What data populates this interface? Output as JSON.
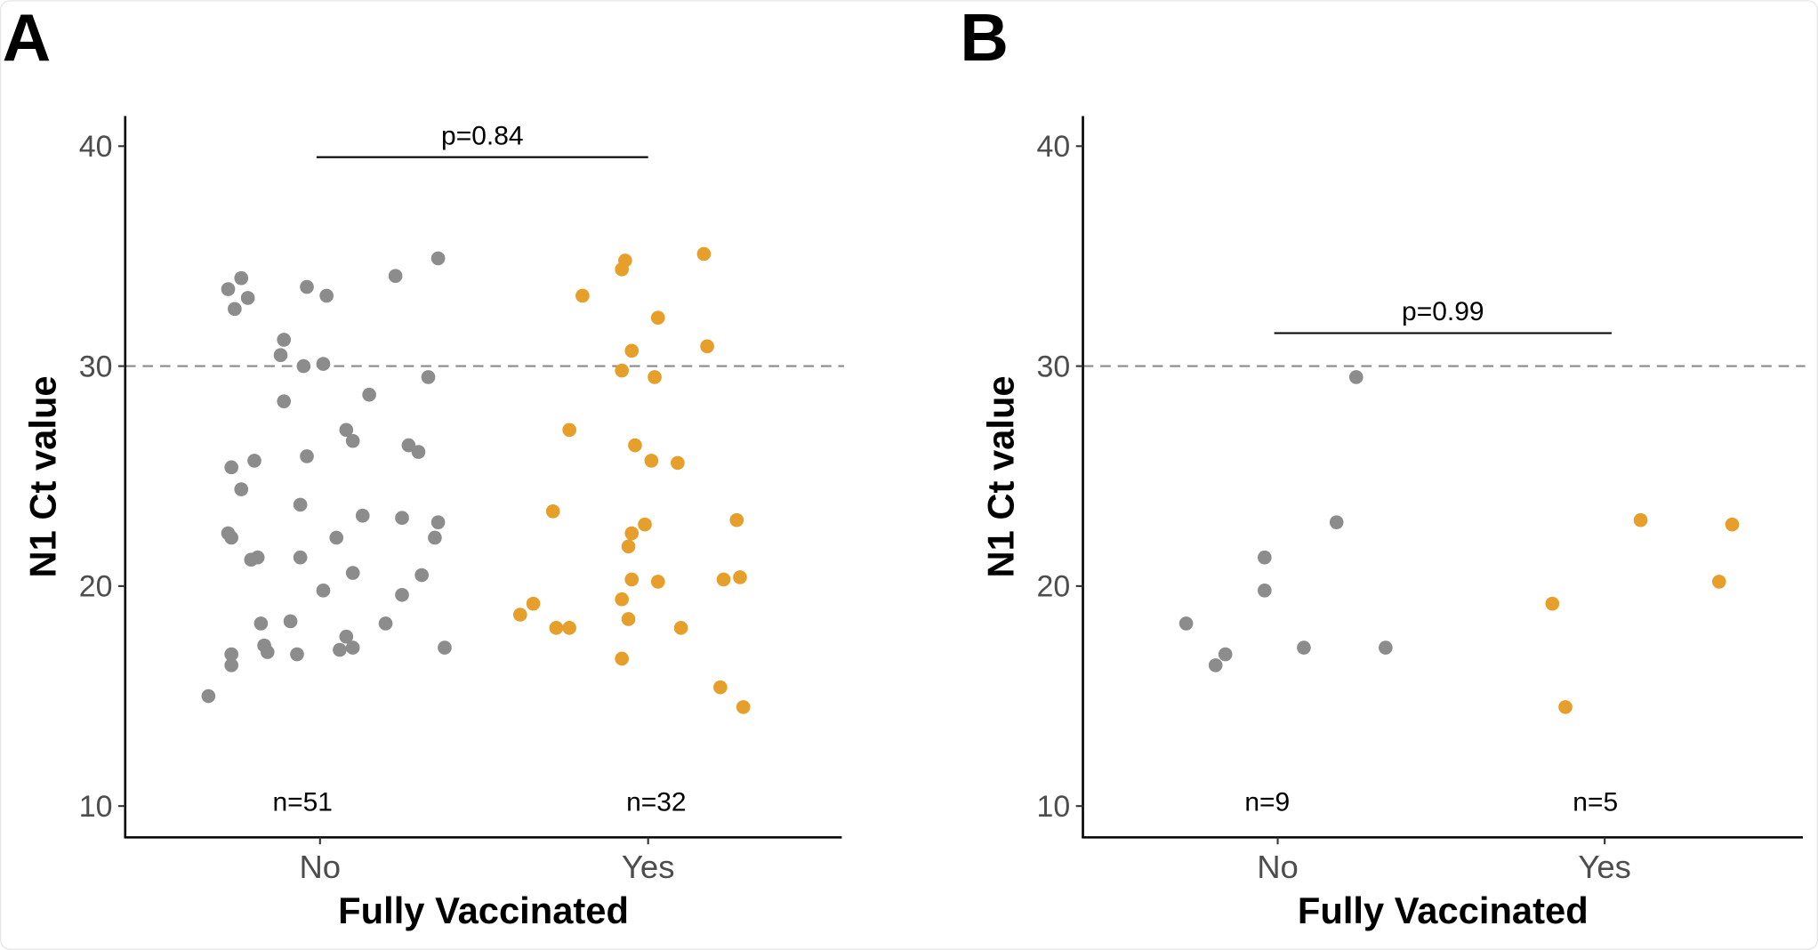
{
  "chart_data": [
    {
      "type": "scatter",
      "panel_label": "A",
      "xlabel": "Fully Vaccinated",
      "ylabel": "N1 Ct value",
      "categories": [
        "No",
        "Yes"
      ],
      "yticks": [
        "10",
        "20",
        "30",
        "40"
      ],
      "ylim": [
        8.6,
        41.4
      ],
      "xlim": [
        0.4,
        2.6
      ],
      "grid": false,
      "reference_line": {
        "y": 30,
        "style": "dashed"
      },
      "comparison": {
        "from": "No",
        "to": "Yes",
        "y": 39.5,
        "label": "p=0.84"
      },
      "counts": [
        {
          "category": "No",
          "label": "n=51"
        },
        {
          "category": "Yes",
          "label": "n=32"
        }
      ],
      "colors": {
        "No": "#8c8c8c",
        "Yes": "#e69f2a"
      },
      "series": [
        {
          "category": "No",
          "points": [
            [
              0.66,
              15.0
            ],
            [
              0.72,
              33.5
            ],
            [
              0.76,
              34.0
            ],
            [
              0.74,
              32.6
            ],
            [
              0.78,
              33.1
            ],
            [
              0.89,
              31.2
            ],
            [
              0.88,
              30.5
            ],
            [
              0.96,
              33.6
            ],
            [
              1.02,
              33.2
            ],
            [
              0.95,
              30.0
            ],
            [
              1.01,
              30.1
            ],
            [
              1.23,
              34.1
            ],
            [
              1.36,
              34.9
            ],
            [
              1.33,
              29.5
            ],
            [
              0.89,
              28.4
            ],
            [
              1.15,
              28.7
            ],
            [
              1.08,
              27.1
            ],
            [
              1.1,
              26.6
            ],
            [
              1.27,
              26.4
            ],
            [
              1.3,
              26.1
            ],
            [
              0.73,
              25.4
            ],
            [
              0.8,
              25.7
            ],
            [
              0.76,
              24.4
            ],
            [
              0.96,
              25.9
            ],
            [
              0.94,
              23.7
            ],
            [
              1.13,
              23.2
            ],
            [
              1.25,
              23.1
            ],
            [
              1.36,
              22.9
            ],
            [
              1.35,
              22.2
            ],
            [
              0.72,
              22.4
            ],
            [
              0.73,
              22.2
            ],
            [
              1.05,
              22.2
            ],
            [
              0.79,
              21.2
            ],
            [
              0.81,
              21.3
            ],
            [
              0.94,
              21.3
            ],
            [
              1.1,
              20.6
            ],
            [
              1.31,
              20.5
            ],
            [
              1.25,
              19.6
            ],
            [
              1.01,
              19.8
            ],
            [
              0.82,
              18.3
            ],
            [
              0.91,
              18.4
            ],
            [
              1.2,
              18.3
            ],
            [
              1.08,
              17.7
            ],
            [
              0.83,
              17.3
            ],
            [
              1.06,
              17.1
            ],
            [
              1.1,
              17.2
            ],
            [
              1.38,
              17.2
            ],
            [
              0.73,
              16.9
            ],
            [
              0.84,
              17.0
            ],
            [
              0.93,
              16.9
            ],
            [
              0.73,
              16.4
            ]
          ]
        },
        {
          "category": "Yes",
          "points": [
            [
              1.93,
              34.8
            ],
            [
              1.92,
              34.4
            ],
            [
              2.17,
              35.1
            ],
            [
              1.8,
              33.2
            ],
            [
              2.03,
              32.2
            ],
            [
              2.18,
              30.9
            ],
            [
              1.95,
              30.7
            ],
            [
              1.92,
              29.8
            ],
            [
              2.02,
              29.5
            ],
            [
              1.76,
              27.1
            ],
            [
              1.96,
              26.4
            ],
            [
              2.01,
              25.7
            ],
            [
              2.09,
              25.6
            ],
            [
              1.71,
              23.4
            ],
            [
              2.27,
              23.0
            ],
            [
              1.99,
              22.8
            ],
            [
              1.95,
              22.4
            ],
            [
              1.94,
              21.8
            ],
            [
              1.95,
              20.3
            ],
            [
              2.03,
              20.2
            ],
            [
              2.23,
              20.3
            ],
            [
              2.28,
              20.4
            ],
            [
              1.92,
              19.4
            ],
            [
              1.65,
              19.2
            ],
            [
              1.61,
              18.7
            ],
            [
              1.94,
              18.5
            ],
            [
              1.72,
              18.1
            ],
            [
              1.76,
              18.1
            ],
            [
              2.1,
              18.1
            ],
            [
              1.92,
              16.7
            ],
            [
              2.22,
              15.4
            ],
            [
              2.29,
              14.5
            ]
          ]
        }
      ]
    },
    {
      "type": "scatter",
      "panel_label": "B",
      "xlabel": "Fully Vaccinated",
      "ylabel": "N1 Ct value",
      "categories": [
        "No",
        "Yes"
      ],
      "yticks": [
        "10",
        "20",
        "30",
        "40"
      ],
      "ylim": [
        8.6,
        41.4
      ],
      "xlim": [
        0.4,
        2.6
      ],
      "grid": false,
      "reference_line": {
        "y": 30,
        "style": "dashed"
      },
      "comparison": {
        "from": "No",
        "to": "Yes",
        "y": 31.5,
        "label": "p=0.99"
      },
      "counts": [
        {
          "category": "No",
          "label": "n=9"
        },
        {
          "category": "Yes",
          "label": "n=5"
        }
      ],
      "colors": {
        "No": "#8c8c8c",
        "Yes": "#e69f2a"
      },
      "series": [
        {
          "category": "No",
          "points": [
            [
              0.72,
              18.3
            ],
            [
              0.81,
              16.4
            ],
            [
              0.84,
              16.9
            ],
            [
              0.96,
              21.3
            ],
            [
              0.96,
              19.8
            ],
            [
              1.08,
              17.2
            ],
            [
              1.18,
              22.9
            ],
            [
              1.24,
              29.5
            ],
            [
              1.33,
              17.2
            ]
          ]
        },
        {
          "category": "Yes",
          "points": [
            [
              1.84,
              19.2
            ],
            [
              1.88,
              14.5
            ],
            [
              2.11,
              23.0
            ],
            [
              2.35,
              20.2
            ],
            [
              2.39,
              22.8
            ]
          ]
        }
      ]
    }
  ]
}
